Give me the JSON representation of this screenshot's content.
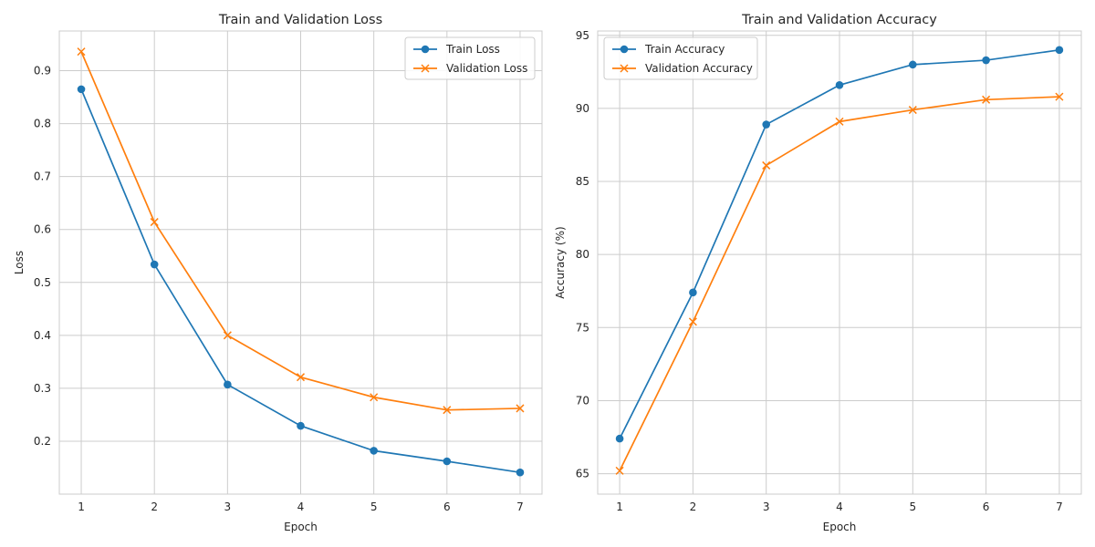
{
  "chart_data": [
    {
      "type": "line",
      "title": "Train and Validation Loss",
      "xlabel": "Epoch",
      "ylabel": "Loss",
      "x": [
        1,
        2,
        3,
        4,
        5,
        6,
        7
      ],
      "xticks": [
        1,
        2,
        3,
        4,
        5,
        6,
        7
      ],
      "yticks": [
        0.2,
        0.3,
        0.4,
        0.5,
        0.6,
        0.7,
        0.8,
        0.9
      ],
      "xlim": [
        0.7,
        7.3
      ],
      "ylim": [
        0.1,
        0.975
      ],
      "grid": true,
      "legend_position": "top-right",
      "series": [
        {
          "name": "Train Loss",
          "color": "#1f77b4",
          "marker": "circle",
          "values": [
            0.865,
            0.534,
            0.307,
            0.229,
            0.182,
            0.162,
            0.141
          ]
        },
        {
          "name": "Validation Loss",
          "color": "#ff7f0e",
          "marker": "x",
          "values": [
            0.936,
            0.614,
            0.4,
            0.321,
            0.283,
            0.259,
            0.262
          ]
        }
      ]
    },
    {
      "type": "line",
      "title": "Train and Validation Accuracy",
      "xlabel": "Epoch",
      "ylabel": "Accuracy (%)",
      "x": [
        1,
        2,
        3,
        4,
        5,
        6,
        7
      ],
      "xticks": [
        1,
        2,
        3,
        4,
        5,
        6,
        7
      ],
      "yticks": [
        65,
        70,
        75,
        80,
        85,
        90,
        95
      ],
      "xlim": [
        0.7,
        7.3
      ],
      "ylim": [
        63.6,
        95.3
      ],
      "grid": true,
      "legend_position": "top-left",
      "series": [
        {
          "name": "Train Accuracy",
          "color": "#1f77b4",
          "marker": "circle",
          "values": [
            67.4,
            77.4,
            88.9,
            91.6,
            93.0,
            93.3,
            94.0
          ]
        },
        {
          "name": "Validation Accuracy",
          "color": "#ff7f0e",
          "marker": "x",
          "values": [
            65.2,
            75.4,
            86.1,
            89.1,
            89.9,
            90.6,
            90.8
          ]
        }
      ]
    }
  ]
}
